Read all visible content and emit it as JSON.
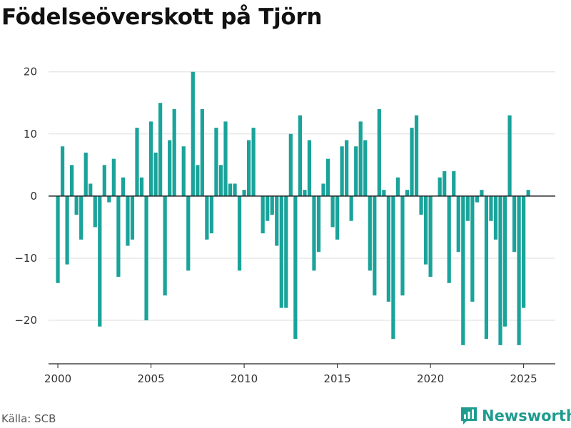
{
  "title": "Födelseöverskott på Tjörn",
  "source": "Källa: SCB",
  "brand": "Newsworthy",
  "colors": {
    "bar": "#1aa39a",
    "brand": "#1f9b8f",
    "zero": "#222222",
    "grid": "#dddddd"
  },
  "chart_data": {
    "type": "bar",
    "title": "Födelseöverskott på Tjörn",
    "xlabel": "",
    "ylabel": "",
    "xlim": [
      1999.5,
      2026.7
    ],
    "ylim": [
      -27,
      21
    ],
    "yticks": [
      -20,
      -10,
      0,
      10,
      20
    ],
    "xticks": [
      2000,
      2005,
      2010,
      2015,
      2020,
      2025
    ],
    "grid": true,
    "frequency": "quarterly",
    "start": "2000-Q1",
    "values": [
      -14,
      8,
      -11,
      5,
      -3,
      -7,
      7,
      2,
      -5,
      -21,
      5,
      -1,
      6,
      -13,
      3,
      -8,
      -7,
      11,
      3,
      -20,
      12,
      7,
      15,
      -16,
      9,
      14,
      0,
      8,
      -12,
      20,
      5,
      14,
      -7,
      -6,
      11,
      5,
      12,
      2,
      2,
      -12,
      1,
      9,
      11,
      0,
      -6,
      -4,
      -3,
      -8,
      -18,
      -18,
      10,
      -23,
      13,
      1,
      9,
      -12,
      -9,
      2,
      6,
      -5,
      -7,
      8,
      9,
      -4,
      8,
      12,
      9,
      -12,
      -16,
      14,
      1,
      -17,
      -23,
      3,
      -16,
      1,
      11,
      13,
      -3,
      -11,
      -13,
      0,
      3,
      4,
      -14,
      4,
      -9,
      -24,
      -4,
      -17,
      -1,
      1,
      -23,
      -4,
      -7,
      -24,
      -21,
      13,
      -9,
      -24,
      -18,
      1
    ]
  }
}
